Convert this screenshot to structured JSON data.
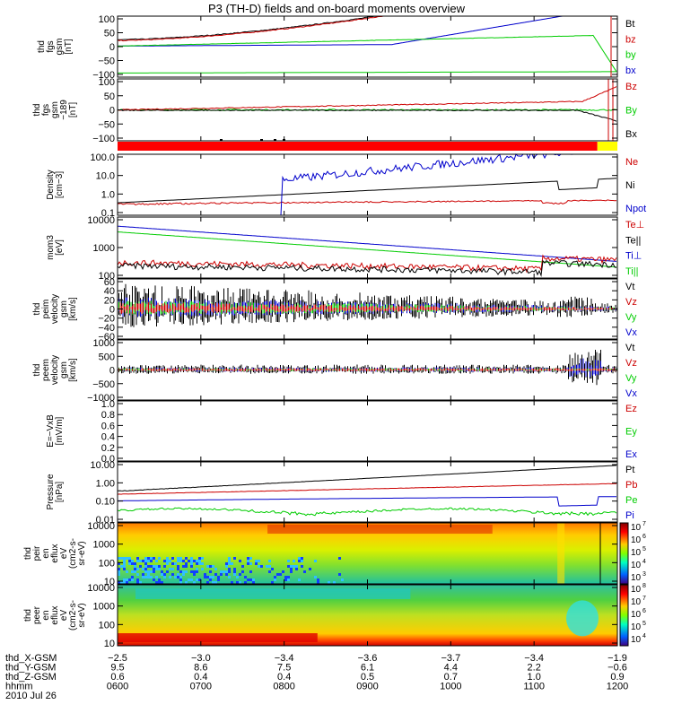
{
  "title": "P3 (TH-D) fields and on-board moments overview",
  "chart_data": [
    {
      "type": "line",
      "ylabel": [
        "thd",
        "fgs",
        "gsm",
        "[nT]"
      ],
      "yticks": [
        "100",
        "50",
        "0",
        "−50",
        "−100"
      ],
      "ylim": [
        -100,
        100
      ],
      "legend": [
        {
          "label": "Bt",
          "color": "#000000"
        },
        {
          "label": "bz",
          "color": "#cc0000"
        },
        {
          "label": "by",
          "color": "#00cc00"
        },
        {
          "label": "bx",
          "color": "#0000cc"
        }
      ]
    },
    {
      "type": "line",
      "ylabel": [
        "thd",
        "fgs",
        "gsm",
        "−189",
        "[nT]"
      ],
      "yticks": [
        "100",
        "50",
        "0",
        "−50",
        "−100"
      ],
      "ylim": [
        -125,
        125
      ],
      "legend": [
        {
          "label": "Bz",
          "color": "#cc0000"
        },
        {
          "label": "By",
          "color": "#00cc00"
        },
        {
          "label": "Bx",
          "color": "#000000"
        }
      ]
    },
    {
      "type": "line",
      "ylabel": [
        "Density",
        "[cm−3]"
      ],
      "yticks": [
        "100.0",
        "10.0",
        "1.0",
        "0.1"
      ],
      "yscale": "log",
      "legend": [
        {
          "label": "Ne",
          "color": "#cc0000"
        },
        {
          "label": "Ni",
          "color": "#000000"
        },
        {
          "label": "Npot",
          "color": "#0000cc"
        }
      ]
    },
    {
      "type": "line",
      "ylabel": [
        "mom3",
        "[eV]"
      ],
      "yticks": [
        "10000",
        "1000",
        "100"
      ],
      "yscale": "log",
      "legend": [
        {
          "label": "Te⊥",
          "color": "#cc0000"
        },
        {
          "label": "Te||",
          "color": "#000000"
        },
        {
          "label": "Ti⊥",
          "color": "#0000cc"
        },
        {
          "label": "Ti||",
          "color": "#00cc00"
        }
      ]
    },
    {
      "type": "line",
      "ylabel": [
        "thd",
        "peim",
        "velocity",
        "gsm",
        "[km/s]"
      ],
      "yticks": [
        "60",
        "40",
        "20",
        "0",
        "−20",
        "−40",
        "−60"
      ],
      "ylim": [
        -60,
        60
      ],
      "legend": [
        {
          "label": "Vt",
          "color": "#000000"
        },
        {
          "label": "Vz",
          "color": "#cc0000"
        },
        {
          "label": "Vy",
          "color": "#00cc00"
        },
        {
          "label": "Vx",
          "color": "#0000cc"
        }
      ]
    },
    {
      "type": "line",
      "ylabel": [
        "thd",
        "peem",
        "velocity",
        "gsm",
        "[km/s]"
      ],
      "yticks": [
        "1000",
        "500",
        "0",
        "−500",
        "−1000"
      ],
      "ylim": [
        -1000,
        1000
      ],
      "legend": [
        {
          "label": "Vt",
          "color": "#000000"
        },
        {
          "label": "Vz",
          "color": "#cc0000"
        },
        {
          "label": "Vy",
          "color": "#00cc00"
        },
        {
          "label": "Vx",
          "color": "#0000cc"
        }
      ]
    },
    {
      "type": "line",
      "ylabel": [
        "E=−VxB",
        "[mV/m]"
      ],
      "yticks": [
        "1.0",
        "0.8",
        "0.6",
        "0.4",
        "0.2",
        "0.0"
      ],
      "ylim": [
        0,
        1
      ],
      "legend": [
        {
          "label": "Ez",
          "color": "#cc0000"
        },
        {
          "label": "Ey",
          "color": "#00cc00"
        },
        {
          "label": "Ex",
          "color": "#0000cc"
        }
      ]
    },
    {
      "type": "line",
      "ylabel": [
        "Pressure",
        "[nPa]"
      ],
      "yticks": [
        "10.00",
        "1.00",
        "0.10",
        "0.01"
      ],
      "yscale": "log",
      "legend": [
        {
          "label": "Pt",
          "color": "#000000"
        },
        {
          "label": "Pb",
          "color": "#cc0000"
        },
        {
          "label": "Pe",
          "color": "#00cc00"
        },
        {
          "label": "Pi",
          "color": "#0000cc"
        }
      ]
    },
    {
      "type": "heatmap",
      "ylabel": [
        "thd",
        "peir",
        "en",
        "eflux",
        "eV",
        "(cm2-s-",
        "sr-eV)"
      ],
      "yticks": [
        "10000",
        "1000",
        "100",
        "10"
      ],
      "yscale": "log",
      "colorbar": [
        "7",
        "6",
        "5",
        "4",
        "3"
      ]
    },
    {
      "type": "heatmap",
      "ylabel": [
        "thd",
        "peer",
        "en",
        "eflux",
        "eV",
        "(cm2-s-",
        "sr-eV)"
      ],
      "yticks": [
        "10000",
        "1000",
        "100",
        "10"
      ],
      "yscale": "log",
      "colorbar": [
        "8",
        "7",
        "6",
        "5",
        "4"
      ]
    }
  ],
  "xaxis": {
    "rows": [
      {
        "label": "thd_X-GSM",
        "values": [
          "−2.5",
          "−3.0",
          "−3.4",
          "−3.6",
          "−3.7",
          "−3.4",
          "−1.9"
        ]
      },
      {
        "label": "thd_Y-GSM",
        "values": [
          "9.5",
          "8.6",
          "7.5",
          "6.1",
          "4.4",
          "2.2",
          "−0.6"
        ]
      },
      {
        "label": "thd_Z-GSM",
        "values": [
          "0.6",
          "0.4",
          "0.4",
          "0.5",
          "0.7",
          "1.0",
          "0.9"
        ]
      },
      {
        "label": "hhmm",
        "values": [
          "0600",
          "0700",
          "0800",
          "0900",
          "1000",
          "1100",
          "1200"
        ]
      }
    ],
    "date": "2010 Jul 26"
  },
  "colorbar_base": "10"
}
